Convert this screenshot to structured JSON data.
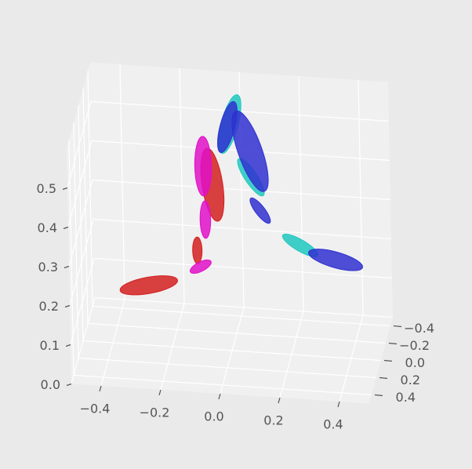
{
  "chart_data": {
    "type": "ellipsoid3d",
    "xlim": [
      -0.5,
      0.5
    ],
    "ylim": [
      -0.5,
      0.5
    ],
    "zlim": [
      0,
      0.6
    ],
    "xticks": [
      {
        "value": -0.4,
        "label": "−0.4"
      },
      {
        "value": -0.2,
        "label": "−0.2"
      },
      {
        "value": 0,
        "label": "0.0"
      },
      0.2,
      0.4
    ],
    "yticks": [
      {
        "value": -0.4,
        "label": "−0.4"
      },
      {
        "value": -0.2,
        "label": "−0.2"
      },
      {
        "value": 0,
        "label": "0.0"
      },
      0.2,
      0.4
    ],
    "zticks": [
      {
        "value": 0,
        "label": "0.0"
      },
      0.1,
      0.2,
      0.3,
      0.4,
      0.5
    ],
    "grid": true,
    "series": [
      {
        "color": "#d42020",
        "x": [
          -0.25,
          -0.11,
          -0.055
        ],
        "y": [
          0.3,
          0,
          0
        ],
        "z": [
          0.22,
          0.25,
          0.42
        ],
        "dx": [
          0.09,
          0,
          -0.016
        ],
        "dy": [
          -0.08,
          0,
          0
        ],
        "dz": [
          0,
          0.034,
          0.092
        ]
      },
      {
        "color": "#e010c8",
        "x": [
          -0.1,
          -0.081,
          -0.085
        ],
        "y": [
          0,
          0,
          0
        ],
        "z": [
          0.209,
          0.33,
          0.466
        ],
        "dx": [
          0.035,
          0,
          0
        ],
        "dy": [
          0,
          0,
          0
        ],
        "dz": [
          0.015,
          0.048,
          0.076
        ]
      },
      {
        "color": "#20c8c0",
        "x": [
          0.007,
          0.075,
          0.236
        ],
        "y": [
          0,
          0,
          0
        ],
        "z": [
          0.578,
          0.446,
          0.28
        ],
        "dx": [
          0.028,
          0.04,
          0.058
        ],
        "dy": [
          0,
          0,
          0
        ],
        "dz": [
          0.076,
          -0.045,
          -0.023
        ]
      },
      {
        "color": "#3030d0",
        "x": [
          -0.001,
          0.074,
          0.104,
          0.354
        ],
        "y": [
          0,
          0,
          0,
          0
        ],
        "z": [
          0.57,
          0.512,
          0.362,
          0.249
        ],
        "dx": [
          0.024,
          0.045,
          0.031,
          0.09
        ],
        "dy": [
          0,
          0,
          0,
          0
        ],
        "dz": [
          0.066,
          -0.1,
          -0.03,
          -0.015
        ]
      }
    ]
  }
}
